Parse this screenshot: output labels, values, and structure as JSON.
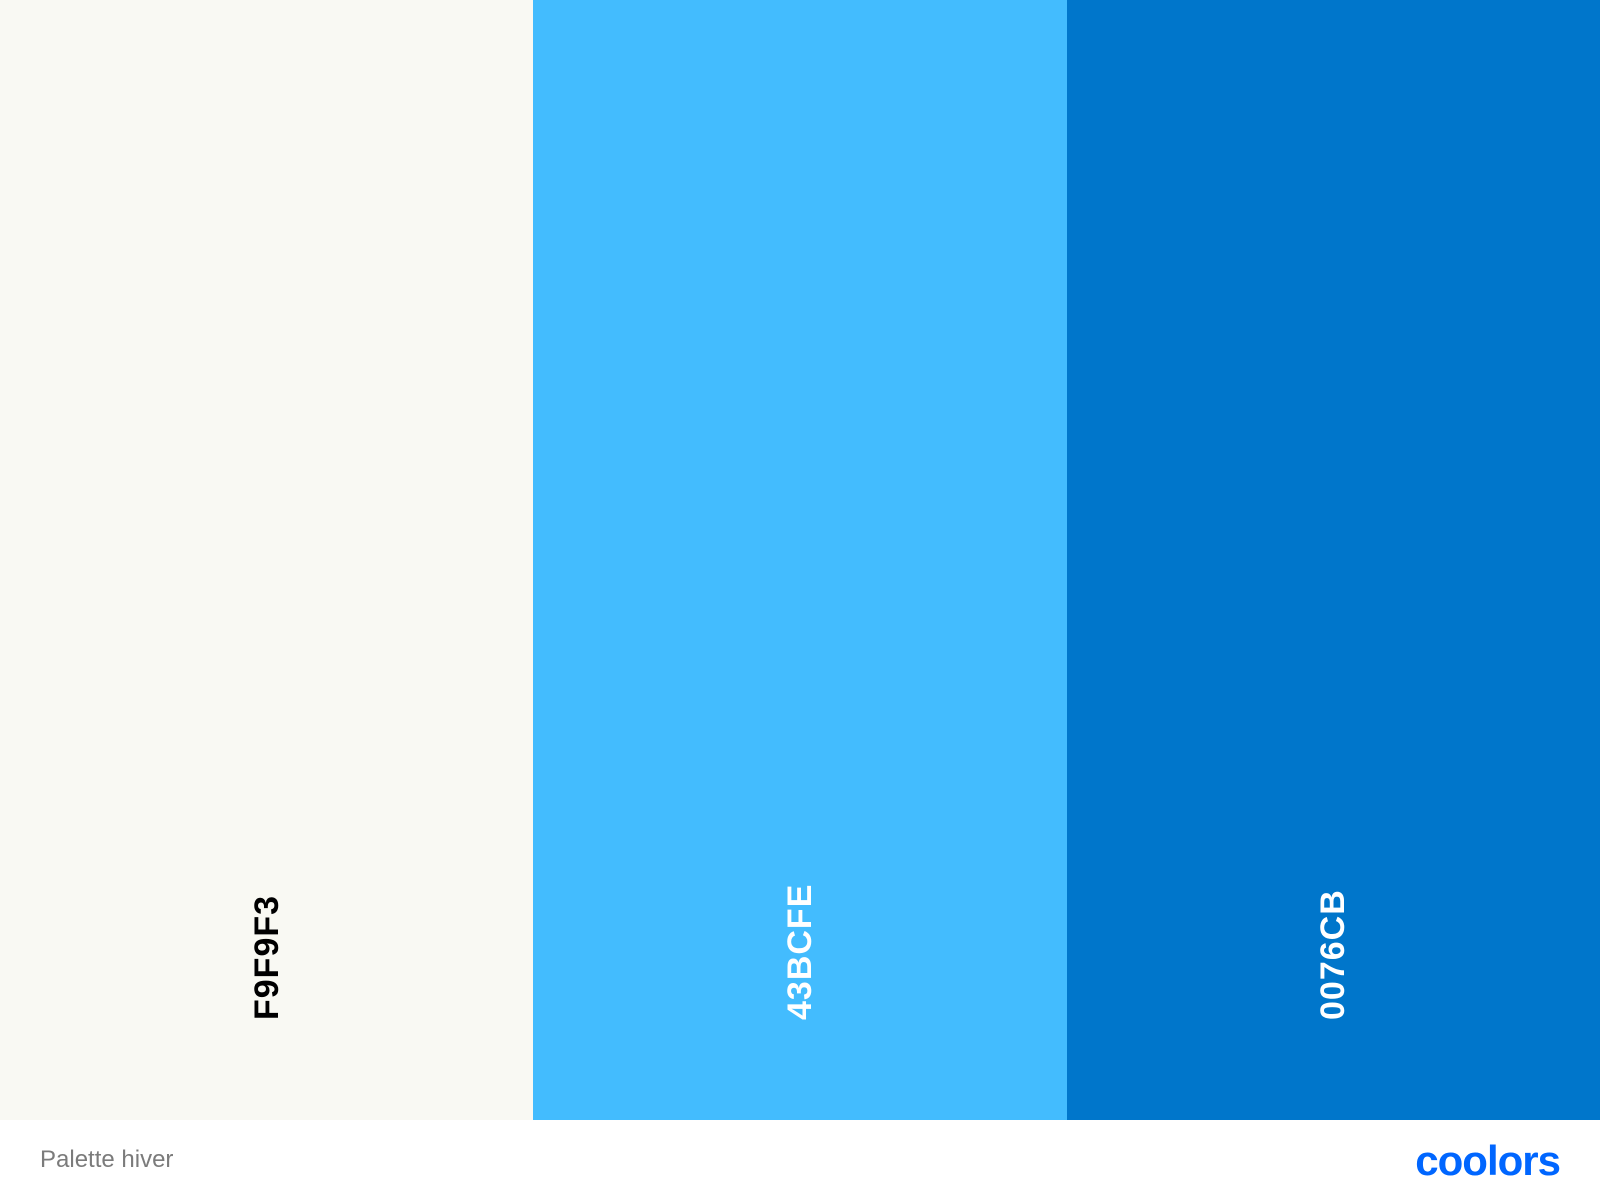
{
  "palette": {
    "name": "Palette hiver",
    "swatches": [
      {
        "hex": "F9F9F3",
        "color": "#F9F9F3",
        "text_color": "#000000"
      },
      {
        "hex": "43BCFE",
        "color": "#43BCFE",
        "text_color": "#FFFFFF"
      },
      {
        "hex": "0076CB",
        "color": "#0076CB",
        "text_color": "#FFFFFF"
      }
    ]
  },
  "brand": {
    "logo_text": "coolors",
    "logo_color": "#0066FF"
  }
}
